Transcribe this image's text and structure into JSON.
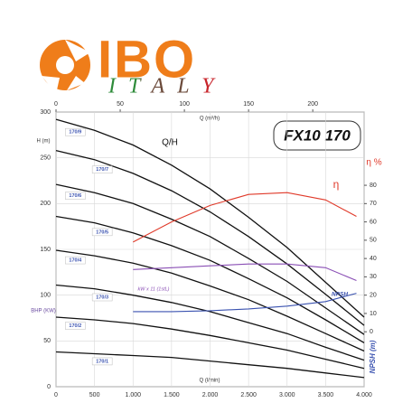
{
  "logo": {
    "brand": "IBO",
    "country": "ITALY"
  },
  "chart_data": {
    "type": "line",
    "title": "FX10 170",
    "subtitle": "Q/H",
    "xlabel": "Q (l/min)",
    "x2label": "Q (m³/h)",
    "ylabel": "H (m)",
    "y2label": "η %",
    "extra_labels": {
      "bhp": "BHP (KW)",
      "npsh": "NPSH (m)"
    },
    "xlim": [
      0,
      4000
    ],
    "xticks": [
      0,
      500,
      {
        "value": 1000,
        "label": "1.000"
      },
      {
        "value": 1500,
        "label": "1.500"
      },
      {
        "value": 2000,
        "label": "2.000"
      },
      {
        "value": 2500,
        "label": "2.500"
      },
      {
        "value": 3000,
        "label": "3.000"
      },
      {
        "value": 3500,
        "label": "3.500"
      },
      {
        "value": 4000,
        "label": "4.000"
      }
    ],
    "x2lim": [
      0,
      240
    ],
    "x2ticks": [
      0,
      50,
      100,
      150,
      200
    ],
    "ylim": [
      0,
      300
    ],
    "yticks": [
      0,
      50,
      100,
      150,
      200,
      250,
      300
    ],
    "y2lim": [
      -30,
      120
    ],
    "y2ticks": [
      0,
      10,
      20,
      30,
      40,
      50,
      60,
      70,
      80
    ],
    "grid": true,
    "series": [
      {
        "name": "170/9",
        "color": "#111111",
        "x": [
          0,
          500,
          1000,
          1500,
          2000,
          2500,
          3000,
          3500,
          4000
        ],
        "values": [
          292,
          280,
          264,
          242,
          216,
          185,
          152,
          114,
          76
        ]
      },
      {
        "name": "170/7",
        "color": "#111111",
        "x": [
          0,
          500,
          1000,
          1500,
          2000,
          2500,
          3000,
          3500,
          4000
        ],
        "values": [
          258,
          248,
          233,
          214,
          191,
          164,
          134,
          101,
          67
        ]
      },
      {
        "name": "170/6",
        "color": "#111111",
        "x": [
          0,
          500,
          1000,
          1500,
          2000,
          2500,
          3000,
          3500,
          4000
        ],
        "values": [
          221,
          212,
          200,
          183,
          164,
          140,
          115,
          86,
          57
        ]
      },
      {
        "name": "170/5",
        "color": "#111111",
        "x": [
          0,
          500,
          1000,
          1500,
          2000,
          2500,
          3000,
          3500,
          4000
        ],
        "values": [
          186,
          179,
          168,
          154,
          138,
          118,
          97,
          73,
          48
        ]
      },
      {
        "name": "170/4",
        "color": "#111111",
        "x": [
          0,
          500,
          1000,
          1500,
          2000,
          2500,
          3000,
          3500,
          4000
        ],
        "values": [
          149,
          143,
          135,
          124,
          110,
          95,
          77,
          58,
          39
        ]
      },
      {
        "name": "170/3",
        "color": "#111111",
        "x": [
          0,
          500,
          1000,
          1500,
          2000,
          2500,
          3000,
          3500,
          4000
        ],
        "values": [
          111,
          107,
          100,
          92,
          82,
          70,
          58,
          43,
          29
        ]
      },
      {
        "name": "170/2",
        "color": "#111111",
        "x": [
          0,
          500,
          1000,
          1500,
          2000,
          2500,
          3000,
          3500,
          4000
        ],
        "values": [
          76,
          73,
          69,
          63,
          56,
          48,
          40,
          30,
          20
        ]
      },
      {
        "name": "170/1",
        "color": "#111111",
        "x": [
          0,
          500,
          1000,
          1500,
          2000,
          2500,
          3000,
          3500,
          4000
        ],
        "values": [
          38,
          36,
          34,
          32,
          28,
          24,
          20,
          15,
          10
        ]
      },
      {
        "name": "η",
        "color": "#e03a2a",
        "axis": "y2",
        "x": [
          1000,
          1500,
          2000,
          2500,
          3000,
          3500,
          3900
        ],
        "values": [
          49,
          60,
          69,
          75,
          76,
          72,
          63
        ]
      },
      {
        "name": "kW x 11 (1stL)",
        "color": "#8a4fb5",
        "axis": "y2",
        "x": [
          1000,
          1500,
          2000,
          2500,
          3000,
          3500,
          3900
        ],
        "values": [
          34,
          35,
          36,
          37,
          37,
          35,
          28
        ]
      },
      {
        "name": "NPSH",
        "color": "#3a52b0",
        "axis": "y2",
        "x": [
          1000,
          1500,
          2000,
          2500,
          3000,
          3500,
          3900
        ],
        "values": [
          11,
          11,
          11.5,
          12.5,
          14,
          16.5,
          21
        ]
      }
    ]
  }
}
